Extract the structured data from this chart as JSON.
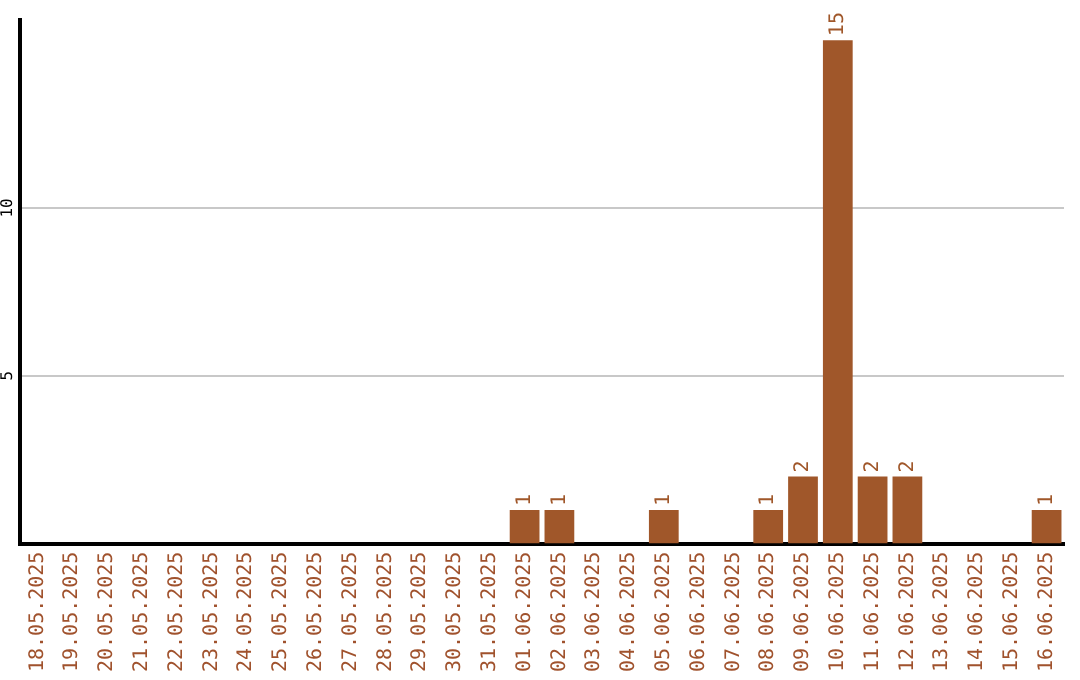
{
  "chart_data": {
    "type": "bar",
    "categories": [
      "18.05.2025",
      "19.05.2025",
      "20.05.2025",
      "21.05.2025",
      "22.05.2025",
      "23.05.2025",
      "24.05.2025",
      "25.05.2025",
      "26.05.2025",
      "27.05.2025",
      "28.05.2025",
      "29.05.2025",
      "30.05.2025",
      "31.05.2025",
      "01.06.2025",
      "02.06.2025",
      "03.06.2025",
      "04.06.2025",
      "05.06.2025",
      "06.06.2025",
      "07.06.2025",
      "08.06.2025",
      "09.06.2025",
      "10.06.2025",
      "11.06.2025",
      "12.06.2025",
      "13.06.2025",
      "14.06.2025",
      "15.06.2025",
      "16.06.2025"
    ],
    "values": [
      0,
      0,
      0,
      0,
      0,
      0,
      0,
      0,
      0,
      0,
      0,
      0,
      0,
      0,
      1,
      1,
      0,
      0,
      1,
      0,
      0,
      1,
      2,
      15,
      2,
      2,
      0,
      0,
      0,
      1
    ],
    "value_labels": [
      null,
      null,
      null,
      null,
      null,
      null,
      null,
      null,
      null,
      null,
      null,
      null,
      null,
      null,
      "1",
      "1",
      null,
      null,
      "1",
      null,
      null,
      "1",
      "2",
      "15",
      "2",
      "2",
      null,
      null,
      null,
      "1"
    ],
    "color": "#a0572a",
    "ylim": [
      0,
      15.6
    ],
    "yticks": [
      5,
      10
    ],
    "grid": "y",
    "legend": false
  }
}
